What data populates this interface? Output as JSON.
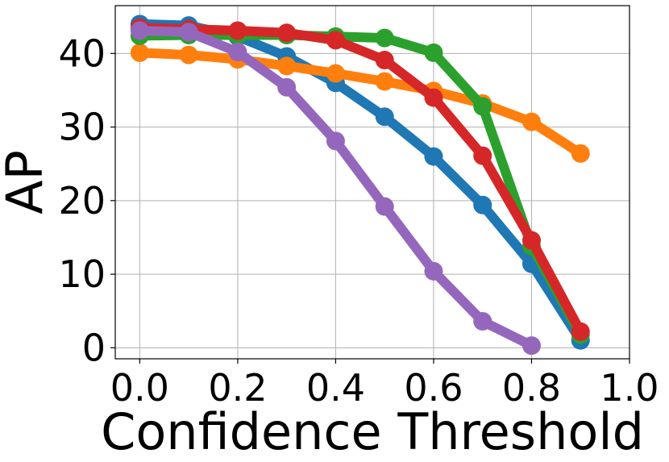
{
  "chart_data": {
    "type": "line",
    "title": "",
    "xlabel": "Confidence Threshold",
    "ylabel": "AP",
    "xlim": [
      -0.05,
      1.0
    ],
    "ylim": [
      -1.5,
      46.5
    ],
    "xticks": [
      0.0,
      0.2,
      0.4,
      0.6,
      0.8,
      1.0
    ],
    "xtick_labels": [
      "0.0",
      "0.2",
      "0.4",
      "0.6",
      "0.8",
      "1.0"
    ],
    "yticks": [
      0,
      10,
      20,
      30,
      40
    ],
    "ytick_labels": [
      "0",
      "10",
      "20",
      "30",
      "40"
    ],
    "grid": true,
    "legend": "none",
    "series": [
      {
        "color": "#1f77b4",
        "x": [
          0.0,
          0.1,
          0.2,
          0.3,
          0.4,
          0.5,
          0.6,
          0.7,
          0.8,
          0.9
        ],
        "values": [
          44.0,
          43.8,
          42.3,
          39.6,
          36.0,
          31.4,
          26.0,
          19.4,
          11.4,
          1.0
        ]
      },
      {
        "color": "#ff7f0e",
        "x": [
          0.0,
          0.1,
          0.2,
          0.3,
          0.4,
          0.5,
          0.6,
          0.7,
          0.8,
          0.9
        ],
        "values": [
          40.1,
          39.8,
          39.2,
          38.3,
          37.3,
          36.2,
          34.9,
          33.2,
          30.7,
          26.4
        ]
      },
      {
        "color": "#2ca02c",
        "x": [
          0.0,
          0.1,
          0.2,
          0.3,
          0.4,
          0.5,
          0.6,
          0.7,
          0.8,
          0.9
        ],
        "values": [
          42.4,
          42.5,
          42.5,
          42.5,
          42.3,
          42.1,
          40.1,
          32.8,
          13.8,
          1.8
        ]
      },
      {
        "color": "#d62728",
        "x": [
          0.0,
          0.1,
          0.2,
          0.3,
          0.4,
          0.5,
          0.6,
          0.7,
          0.8,
          0.9
        ],
        "values": [
          43.5,
          43.3,
          43.1,
          42.8,
          41.8,
          39.1,
          34.0,
          26.1,
          14.6,
          2.2
        ]
      },
      {
        "color": "#9467bd",
        "x": [
          0.0,
          0.1,
          0.2,
          0.3,
          0.4,
          0.5,
          0.6,
          0.7,
          0.8
        ],
        "values": [
          43.1,
          42.9,
          40.2,
          35.4,
          28.1,
          19.2,
          10.4,
          3.6,
          0.3
        ]
      }
    ]
  }
}
